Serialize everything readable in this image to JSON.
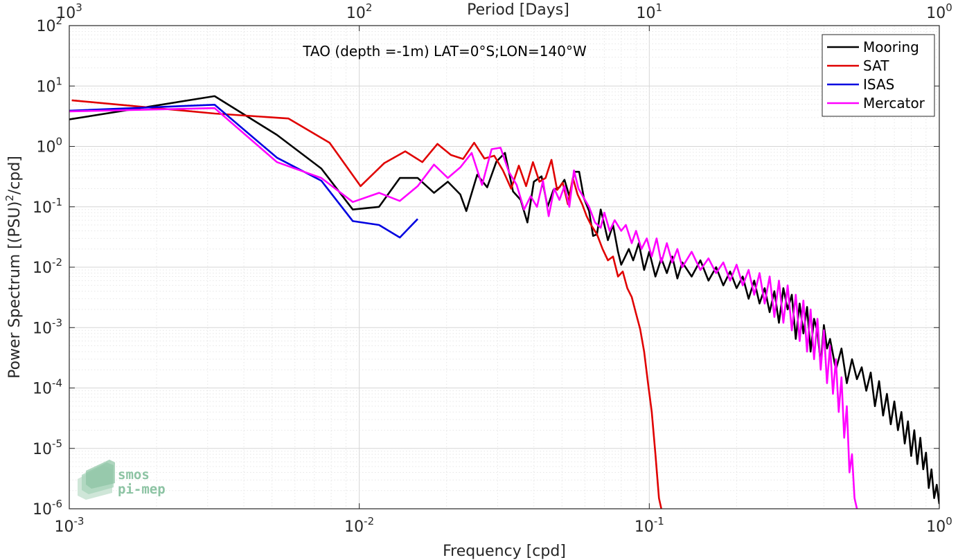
{
  "chart_data": {
    "type": "line",
    "title": "TAO (depth =-1m) LAT=0°S;LON=140°W",
    "xlabel": "Frequency [cpd]",
    "ylabel": "Power Spectrum [(PSU)^2/cpd]",
    "ylabel_parts": {
      "pre": "Power Spectrum [(PSU)",
      "sup": "2",
      "post": "/cpd]"
    },
    "top_axis_label": "Period [Days]",
    "x_scale": "log",
    "y_scale": "log",
    "xlim": [
      0.001,
      1
    ],
    "ylim": [
      1e-06,
      100
    ],
    "grid": true,
    "legend_position": "top-right",
    "x_ticks": [
      {
        "base": "10",
        "exp": "-3",
        "value": 0.001
      },
      {
        "base": "10",
        "exp": "-2",
        "value": 0.01
      },
      {
        "base": "10",
        "exp": "-1",
        "value": 0.1
      },
      {
        "base": "10",
        "exp": "0",
        "value": 1
      }
    ],
    "top_ticks": [
      {
        "base": "10",
        "exp": "3",
        "value": 1000
      },
      {
        "base": "10",
        "exp": "2",
        "value": 100
      },
      {
        "base": "10",
        "exp": "1",
        "value": 10
      },
      {
        "base": "10",
        "exp": "0",
        "value": 1
      }
    ],
    "y_ticks": [
      {
        "base": "10",
        "exp": "2",
        "value": 100
      },
      {
        "base": "10",
        "exp": "1",
        "value": 10
      },
      {
        "base": "10",
        "exp": "0",
        "value": 1
      },
      {
        "base": "10",
        "exp": "-1",
        "value": 0.1
      },
      {
        "base": "10",
        "exp": "-2",
        "value": 0.01
      },
      {
        "base": "10",
        "exp": "-3",
        "value": 0.001
      },
      {
        "base": "10",
        "exp": "-4",
        "value": 0.0001
      },
      {
        "base": "10",
        "exp": "-5",
        "value": 1e-05
      },
      {
        "base": "10",
        "exp": "-6",
        "value": 1e-06
      }
    ],
    "series": [
      {
        "name": "Mooring",
        "color": "#000000",
        "points": [
          [
            0.001,
            2.8
          ],
          [
            0.00317,
            6.8
          ],
          [
            0.0052,
            1.55
          ],
          [
            0.0074,
            0.43
          ],
          [
            0.0095,
            0.09
          ],
          [
            0.0117,
            0.1
          ],
          [
            0.0138,
            0.3
          ],
          [
            0.0159,
            0.3
          ],
          [
            0.0181,
            0.17
          ],
          [
            0.0202,
            0.26
          ],
          [
            0.0223,
            0.16
          ],
          [
            0.0234,
            0.085
          ],
          [
            0.0255,
            0.34
          ],
          [
            0.0276,
            0.21
          ],
          [
            0.0297,
            0.56
          ],
          [
            0.0318,
            0.78
          ],
          [
            0.0339,
            0.18
          ],
          [
            0.036,
            0.13
          ],
          [
            0.038,
            0.055
          ],
          [
            0.04,
            0.26
          ],
          [
            0.0425,
            0.32
          ],
          [
            0.0446,
            0.1
          ],
          [
            0.0467,
            0.19
          ],
          [
            0.049,
            0.21
          ],
          [
            0.051,
            0.28
          ],
          [
            0.053,
            0.15
          ],
          [
            0.0552,
            0.38
          ],
          [
            0.0573,
            0.38
          ],
          [
            0.0595,
            0.14
          ],
          [
            0.062,
            0.085
          ],
          [
            0.064,
            0.033
          ],
          [
            0.066,
            0.035
          ],
          [
            0.068,
            0.09
          ],
          [
            0.07,
            0.05
          ],
          [
            0.072,
            0.028
          ],
          [
            0.075,
            0.05
          ],
          [
            0.078,
            0.018
          ],
          [
            0.08,
            0.011
          ],
          [
            0.082,
            0.014
          ],
          [
            0.085,
            0.02
          ],
          [
            0.088,
            0.013
          ],
          [
            0.092,
            0.025
          ],
          [
            0.096,
            0.009
          ],
          [
            0.1,
            0.018
          ],
          [
            0.105,
            0.007
          ],
          [
            0.11,
            0.014
          ],
          [
            0.115,
            0.008
          ],
          [
            0.12,
            0.015
          ],
          [
            0.125,
            0.0065
          ],
          [
            0.13,
            0.012
          ],
          [
            0.14,
            0.007
          ],
          [
            0.15,
            0.013
          ],
          [
            0.16,
            0.006
          ],
          [
            0.17,
            0.01
          ],
          [
            0.18,
            0.005
          ],
          [
            0.19,
            0.0085
          ],
          [
            0.2,
            0.0045
          ],
          [
            0.21,
            0.007
          ],
          [
            0.22,
            0.003
          ],
          [
            0.23,
            0.006
          ],
          [
            0.24,
            0.0025
          ],
          [
            0.25,
            0.0045
          ],
          [
            0.26,
            0.0018
          ],
          [
            0.27,
            0.004
          ],
          [
            0.28,
            0.0012
          ],
          [
            0.29,
            0.0045
          ],
          [
            0.3,
            0.002
          ],
          [
            0.31,
            0.0035
          ],
          [
            0.32,
            0.00065
          ],
          [
            0.33,
            0.0025
          ],
          [
            0.34,
            0.0008
          ],
          [
            0.35,
            0.0022
          ],
          [
            0.36,
            0.0004
          ],
          [
            0.37,
            0.0014
          ],
          [
            0.38,
            0.00085
          ],
          [
            0.39,
            0.00025
          ],
          [
            0.4,
            0.0011
          ],
          [
            0.41,
            0.00045
          ],
          [
            0.42,
            0.00065
          ],
          [
            0.44,
            0.0002
          ],
          [
            0.46,
            0.00045
          ],
          [
            0.48,
            0.00012
          ],
          [
            0.5,
            0.0003
          ],
          [
            0.52,
            0.00014
          ],
          [
            0.54,
            0.00022
          ],
          [
            0.56,
            9e-05
          ],
          [
            0.58,
            0.00018
          ],
          [
            0.6,
            5e-05
          ],
          [
            0.62,
            0.00013
          ],
          [
            0.64,
            3.5e-05
          ],
          [
            0.66,
            8e-05
          ],
          [
            0.68,
            2.5e-05
          ],
          [
            0.7,
            6e-05
          ],
          [
            0.72,
            2e-05
          ],
          [
            0.74,
            4e-05
          ],
          [
            0.76,
            1.2e-05
          ],
          [
            0.78,
            2.8e-05
          ],
          [
            0.8,
            7.5e-06
          ],
          [
            0.82,
            2e-05
          ],
          [
            0.84,
            5.5e-06
          ],
          [
            0.86,
            1.5e-05
          ],
          [
            0.88,
            4.5e-06
          ],
          [
            0.9,
            8.5e-06
          ],
          [
            0.92,
            2.2e-06
          ],
          [
            0.94,
            4.5e-06
          ],
          [
            0.96,
            1.5e-06
          ],
          [
            0.98,
            2.5e-06
          ],
          [
            1.0,
            1.2e-06
          ]
        ]
      },
      {
        "name": "SAT",
        "color": "#e00000",
        "points": [
          [
            0.00102,
            5.8
          ],
          [
            0.00317,
            3.5
          ],
          [
            0.0057,
            2.9
          ],
          [
            0.0079,
            1.15
          ],
          [
            0.0101,
            0.22
          ],
          [
            0.0122,
            0.53
          ],
          [
            0.0144,
            0.83
          ],
          [
            0.0165,
            0.55
          ],
          [
            0.0186,
            1.1
          ],
          [
            0.0207,
            0.72
          ],
          [
            0.0228,
            0.62
          ],
          [
            0.0249,
            1.15
          ],
          [
            0.027,
            0.63
          ],
          [
            0.0292,
            0.7
          ],
          [
            0.0313,
            0.4
          ],
          [
            0.0334,
            0.2
          ],
          [
            0.0355,
            0.48
          ],
          [
            0.0376,
            0.22
          ],
          [
            0.0397,
            0.55
          ],
          [
            0.0418,
            0.26
          ],
          [
            0.0439,
            0.3
          ],
          [
            0.046,
            0.6
          ],
          [
            0.0481,
            0.19
          ],
          [
            0.0503,
            0.25
          ],
          [
            0.0524,
            0.11
          ],
          [
            0.0545,
            0.3
          ],
          [
            0.0566,
            0.16
          ],
          [
            0.0587,
            0.11
          ],
          [
            0.0608,
            0.07
          ],
          [
            0.063,
            0.05
          ],
          [
            0.066,
            0.035
          ],
          [
            0.069,
            0.02
          ],
          [
            0.072,
            0.013
          ],
          [
            0.075,
            0.015
          ],
          [
            0.078,
            0.007
          ],
          [
            0.081,
            0.0085
          ],
          [
            0.084,
            0.0045
          ],
          [
            0.087,
            0.0032
          ],
          [
            0.09,
            0.0017
          ],
          [
            0.093,
            0.00095
          ],
          [
            0.096,
            0.0004
          ],
          [
            0.099,
            0.00012
          ],
          [
            0.102,
            4e-05
          ],
          [
            0.105,
            8e-06
          ],
          [
            0.108,
            1.5e-06
          ],
          [
            0.11,
            1e-06
          ]
        ]
      },
      {
        "name": "ISAS",
        "color": "#0000e0",
        "points": [
          [
            0.001,
            3.9
          ],
          [
            0.00317,
            4.9
          ],
          [
            0.0052,
            0.65
          ],
          [
            0.0074,
            0.27
          ],
          [
            0.0095,
            0.058
          ],
          [
            0.0117,
            0.05
          ],
          [
            0.0138,
            0.031
          ],
          [
            0.0159,
            0.063
          ]
        ]
      },
      {
        "name": "Mercator",
        "color": "#ff00ff",
        "points": [
          [
            0.001,
            3.8
          ],
          [
            0.00317,
            4.3
          ],
          [
            0.0052,
            0.55
          ],
          [
            0.0074,
            0.3
          ],
          [
            0.0095,
            0.12
          ],
          [
            0.0117,
            0.17
          ],
          [
            0.0138,
            0.125
          ],
          [
            0.0159,
            0.22
          ],
          [
            0.0181,
            0.5
          ],
          [
            0.0202,
            0.3
          ],
          [
            0.0223,
            0.45
          ],
          [
            0.0244,
            0.78
          ],
          [
            0.0265,
            0.23
          ],
          [
            0.0286,
            0.9
          ],
          [
            0.0307,
            0.95
          ],
          [
            0.0328,
            0.38
          ],
          [
            0.0349,
            0.23
          ],
          [
            0.037,
            0.09
          ],
          [
            0.039,
            0.15
          ],
          [
            0.041,
            0.1
          ],
          [
            0.043,
            0.27
          ],
          [
            0.045,
            0.07
          ],
          [
            0.047,
            0.2
          ],
          [
            0.049,
            0.13
          ],
          [
            0.051,
            0.22
          ],
          [
            0.053,
            0.1
          ],
          [
            0.055,
            0.4
          ],
          [
            0.057,
            0.2
          ],
          [
            0.059,
            0.15
          ],
          [
            0.062,
            0.1
          ],
          [
            0.065,
            0.055
          ],
          [
            0.068,
            0.045
          ],
          [
            0.07,
            0.08
          ],
          [
            0.073,
            0.04
          ],
          [
            0.076,
            0.06
          ],
          [
            0.08,
            0.04
          ],
          [
            0.083,
            0.05
          ],
          [
            0.087,
            0.025
          ],
          [
            0.09,
            0.04
          ],
          [
            0.094,
            0.02
          ],
          [
            0.098,
            0.03
          ],
          [
            0.102,
            0.015
          ],
          [
            0.106,
            0.03
          ],
          [
            0.11,
            0.012
          ],
          [
            0.115,
            0.025
          ],
          [
            0.12,
            0.012
          ],
          [
            0.125,
            0.02
          ],
          [
            0.13,
            0.01
          ],
          [
            0.14,
            0.018
          ],
          [
            0.15,
            0.009
          ],
          [
            0.16,
            0.014
          ],
          [
            0.17,
            0.008
          ],
          [
            0.18,
            0.012
          ],
          [
            0.19,
            0.006
          ],
          [
            0.2,
            0.011
          ],
          [
            0.21,
            0.005
          ],
          [
            0.22,
            0.009
          ],
          [
            0.23,
            0.0035
          ],
          [
            0.24,
            0.008
          ],
          [
            0.25,
            0.0025
          ],
          [
            0.26,
            0.007
          ],
          [
            0.27,
            0.0015
          ],
          [
            0.28,
            0.006
          ],
          [
            0.29,
            0.0012
          ],
          [
            0.3,
            0.005
          ],
          [
            0.31,
            0.0009
          ],
          [
            0.32,
            0.0035
          ],
          [
            0.33,
            0.0006
          ],
          [
            0.34,
            0.0028
          ],
          [
            0.35,
            0.0004
          ],
          [
            0.36,
            0.002
          ],
          [
            0.37,
            0.0003
          ],
          [
            0.38,
            0.0014
          ],
          [
            0.39,
            0.0002
          ],
          [
            0.4,
            0.0009
          ],
          [
            0.41,
            0.00012
          ],
          [
            0.42,
            0.0005
          ],
          [
            0.43,
            8e-05
          ],
          [
            0.44,
            0.0003
          ],
          [
            0.45,
            4e-05
          ],
          [
            0.46,
            0.00015
          ],
          [
            0.47,
            1.5e-05
          ],
          [
            0.48,
            5e-05
          ],
          [
            0.49,
            4e-06
          ],
          [
            0.5,
            8e-06
          ],
          [
            0.51,
            1.5e-06
          ],
          [
            0.52,
            1e-06
          ]
        ]
      }
    ]
  },
  "watermark": {
    "line1": "smos",
    "line2": "pi-mep"
  }
}
